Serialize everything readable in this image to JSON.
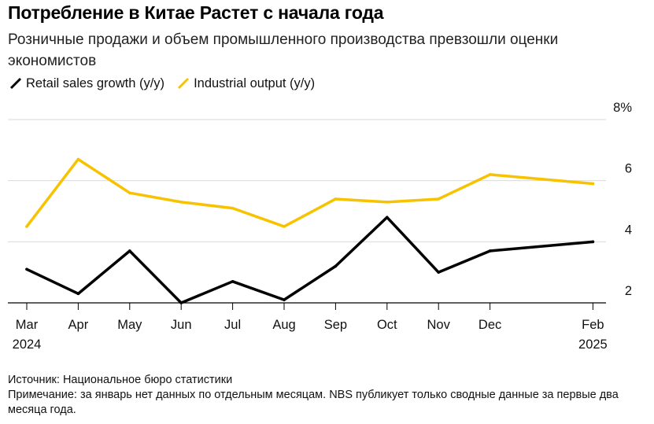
{
  "title": "Потребление в Китае Растет с начала года",
  "subtitle": "Розничные продажи и объем промышленного производства превзошли оценки экономистов",
  "colors": {
    "retail": "#000000",
    "industrial": "#f7c300",
    "grid": "#d9d9d9",
    "axis": "#000000"
  },
  "chart_data": {
    "type": "line",
    "categories": [
      "Mar",
      "Apr",
      "May",
      "Jun",
      "Jul",
      "Aug",
      "Sep",
      "Oct",
      "Nov",
      "Dec",
      "Feb"
    ],
    "category_years": [
      "2024",
      "",
      "",
      "",
      "",
      "",
      "",
      "",
      "",
      "",
      "2025"
    ],
    "x_positions": [
      0,
      1,
      2,
      3,
      4,
      5,
      6,
      7,
      8,
      9,
      11
    ],
    "series": [
      {
        "name": "Retail sales growth (y/y)",
        "color": "#000000",
        "values": [
          3.1,
          2.3,
          3.7,
          2.0,
          2.7,
          2.1,
          3.2,
          4.8,
          3.0,
          3.7,
          4.0
        ]
      },
      {
        "name": "Industrial output (y/y)",
        "color": "#f7c300",
        "values": [
          4.5,
          6.7,
          5.6,
          5.3,
          5.1,
          4.5,
          5.4,
          5.3,
          5.4,
          6.2,
          5.9
        ]
      }
    ],
    "y_ticks": [
      2,
      4,
      6,
      8
    ],
    "y_tick_labels": [
      "2",
      "4",
      "6",
      "8%"
    ],
    "ylim": [
      2,
      8
    ],
    "xlabel": "",
    "ylabel": "",
    "legend": "top-left",
    "grid": true
  },
  "notes": {
    "source": "Источник: Национальное бюро статистики",
    "note": "Примечание: за январь нет данных по отдельным месяцам. NBS публикует только сводные данные за первые два месяца года."
  }
}
